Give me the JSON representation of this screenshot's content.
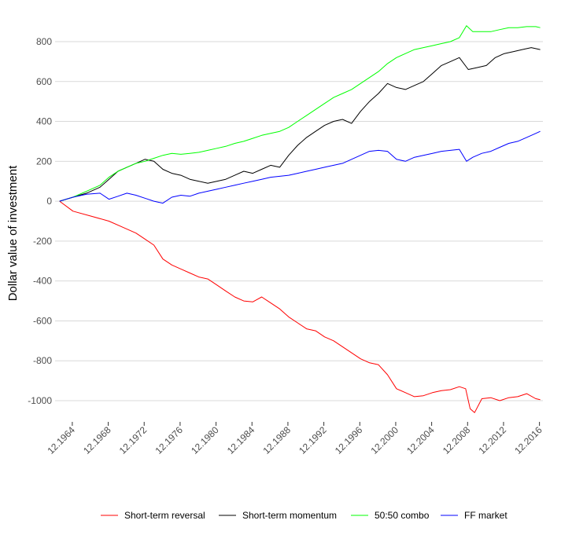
{
  "chart_data": {
    "type": "line",
    "title": "",
    "xlabel": "",
    "ylabel": "Dollar value of investment",
    "xlim": [
      1963.0,
      2017.3
    ],
    "ylim": [
      -1100,
      900
    ],
    "y_ticks": [
      800,
      600,
      400,
      200,
      0,
      -200,
      -400,
      -600,
      -800,
      -1000
    ],
    "y_tick_labels": [
      "800",
      "600",
      "400",
      "200",
      "0",
      "-200",
      "-400",
      "-600",
      "-800",
      "-1000"
    ],
    "x_ticks": [
      1964.917,
      1968.917,
      1972.917,
      1976.917,
      1980.917,
      1984.917,
      1988.917,
      1992.917,
      1996.917,
      2000.917,
      2004.917,
      2008.917,
      2012.917,
      2016.917
    ],
    "x_tick_labels": [
      "12.1964",
      "12.1968",
      "12.1972",
      "12.1976",
      "12.1980",
      "12.1984",
      "12.1988",
      "12.1992",
      "12.1996",
      "12.2000",
      "12.2004",
      "12.2008",
      "12.2012",
      "12.2016"
    ],
    "grid": true,
    "legend_position": "bottom",
    "series": [
      {
        "name": "Short-term reversal",
        "color": "#ff0000",
        "x": [
          1963.5,
          1965,
          1967,
          1969,
          1970.5,
          1972,
          1973,
          1974,
          1975,
          1976,
          1977,
          1978,
          1979,
          1980,
          1981,
          1982,
          1983,
          1984,
          1985,
          1986,
          1987,
          1988,
          1989,
          1990,
          1991,
          1992,
          1993,
          1994,
          1995,
          1996,
          1997,
          1998,
          1999,
          2000,
          2001,
          2002,
          2003,
          2004,
          2005,
          2006,
          2007,
          2008,
          2008.7,
          2009.2,
          2009.7,
          2010.5,
          2011.5,
          2012.5,
          2013.5,
          2014.5,
          2015.5,
          2016.5,
          2017.0
        ],
        "values": [
          0,
          -50,
          -75,
          -100,
          -130,
          -160,
          -190,
          -220,
          -290,
          -320,
          -340,
          -360,
          -380,
          -390,
          -420,
          -450,
          -480,
          -500,
          -505,
          -480,
          -510,
          -540,
          -580,
          -610,
          -640,
          -650,
          -680,
          -700,
          -730,
          -760,
          -790,
          -810,
          -820,
          -870,
          -940,
          -960,
          -980,
          -975,
          -960,
          -950,
          -945,
          -930,
          -940,
          -1040,
          -1060,
          -990,
          -985,
          -1000,
          -985,
          -980,
          -965,
          -990,
          -995
        ]
      },
      {
        "name": "Short-term momentum",
        "color": "#000000",
        "x": [
          1963.5,
          1965,
          1966.5,
          1968,
          1969,
          1970,
          1971,
          1972,
          1973,
          1974,
          1975,
          1976,
          1977,
          1978,
          1979,
          1980,
          1981,
          1982,
          1983,
          1984,
          1985,
          1986,
          1987,
          1988,
          1989,
          1990,
          1991,
          1992,
          1993,
          1994,
          1995,
          1996,
          1997,
          1998,
          1999,
          2000,
          2001,
          2002,
          2003,
          2004,
          2005,
          2006,
          2007,
          2008,
          2009,
          2010,
          2011,
          2012,
          2013,
          2014,
          2015,
          2016,
          2017.0
        ],
        "values": [
          0,
          20,
          40,
          70,
          110,
          150,
          170,
          190,
          210,
          200,
          160,
          140,
          130,
          110,
          100,
          90,
          100,
          110,
          130,
          150,
          140,
          160,
          180,
          170,
          230,
          280,
          320,
          350,
          380,
          400,
          410,
          390,
          450,
          500,
          540,
          590,
          570,
          560,
          580,
          600,
          640,
          680,
          700,
          720,
          660,
          670,
          680,
          720,
          740,
          750,
          760,
          770,
          760
        ]
      },
      {
        "name": "50:50 combo",
        "color": "#00ff00",
        "x": [
          1963.5,
          1965,
          1966.5,
          1968,
          1969,
          1970,
          1971,
          1972,
          1973,
          1974,
          1975,
          1976,
          1977,
          1978,
          1979,
          1980,
          1981,
          1982,
          1983,
          1984,
          1985,
          1986,
          1987,
          1988,
          1989,
          1990,
          1991,
          1992,
          1993,
          1994,
          1995,
          1996,
          1997,
          1998,
          1999,
          2000,
          2001,
          2002,
          2003,
          2004,
          2005,
          2006,
          2007,
          2008,
          2008.8,
          2009.5,
          2010.5,
          2011.5,
          2012.5,
          2013.5,
          2014.5,
          2015.5,
          2016.5,
          2017.0
        ],
        "values": [
          0,
          20,
          50,
          80,
          120,
          150,
          170,
          190,
          200,
          215,
          230,
          240,
          235,
          240,
          245,
          255,
          265,
          275,
          290,
          300,
          315,
          330,
          340,
          350,
          370,
          400,
          430,
          460,
          490,
          520,
          540,
          560,
          590,
          620,
          650,
          690,
          720,
          740,
          760,
          770,
          780,
          790,
          800,
          820,
          880,
          850,
          850,
          850,
          860,
          870,
          870,
          875,
          875,
          870
        ]
      },
      {
        "name": "FF market",
        "color": "#0000ff",
        "x": [
          1963.5,
          1965,
          1966.5,
          1968,
          1969,
          1970,
          1971,
          1972,
          1973,
          1974,
          1975,
          1976,
          1977,
          1978,
          1979,
          1980,
          1981,
          1982,
          1983,
          1984,
          1985,
          1986,
          1987,
          1988,
          1989,
          1990,
          1991,
          1992,
          1993,
          1994,
          1995,
          1996,
          1997,
          1998,
          1999,
          2000,
          2001,
          2002,
          2003,
          2004,
          2005,
          2006,
          2007,
          2008,
          2008.8,
          2009.5,
          2010.5,
          2011.5,
          2012.5,
          2013.5,
          2014.5,
          2015.5,
          2016.5,
          2017.0
        ],
        "values": [
          0,
          20,
          35,
          40,
          10,
          25,
          40,
          30,
          15,
          0,
          -10,
          20,
          30,
          25,
          40,
          50,
          60,
          70,
          80,
          90,
          100,
          110,
          120,
          125,
          130,
          140,
          150,
          160,
          170,
          180,
          190,
          210,
          230,
          250,
          255,
          250,
          210,
          200,
          220,
          230,
          240,
          250,
          255,
          260,
          200,
          220,
          240,
          250,
          270,
          290,
          300,
          320,
          340,
          350
        ]
      }
    ]
  }
}
